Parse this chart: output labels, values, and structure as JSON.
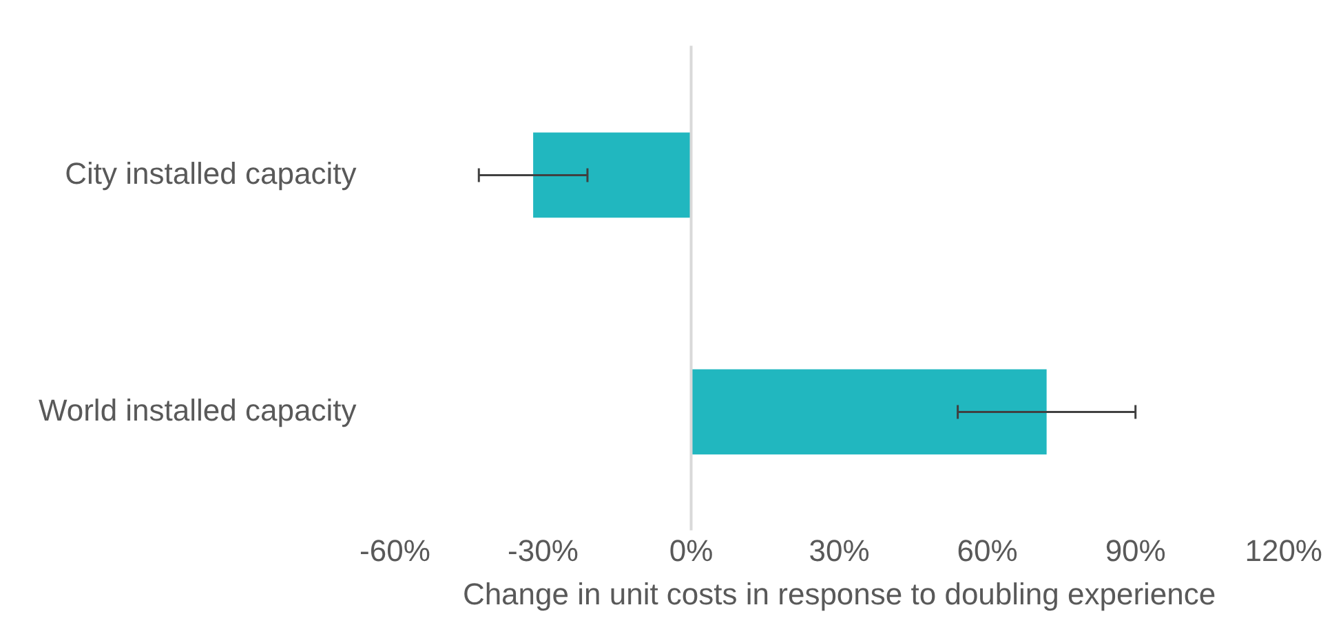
{
  "chart_data": {
    "type": "bar",
    "orientation": "horizontal",
    "xlabel": "Change in unit costs in response to doubling experience",
    "categories": [
      "City installed capacity",
      "World installed capacity"
    ],
    "values": [
      -32,
      72
    ],
    "color": "#21b7bf",
    "errors": [
      [
        -43,
        -21
      ],
      [
        54,
        90
      ]
    ],
    "xlim": [
      -60,
      120
    ],
    "xticks": [
      {
        "value": -60,
        "label": "-60%"
      },
      {
        "value": -30,
        "label": "-30%"
      },
      {
        "value": 0,
        "label": "0%"
      },
      {
        "value": 30,
        "label": "30%"
      },
      {
        "value": 60,
        "label": "60%"
      },
      {
        "value": 90,
        "label": "90%"
      },
      {
        "value": 120,
        "label": "120%"
      }
    ],
    "ref_lines": [
      {
        "axis": "x",
        "value": 0,
        "color": "#d9d9d9"
      }
    ],
    "grid": false,
    "legend": false
  }
}
